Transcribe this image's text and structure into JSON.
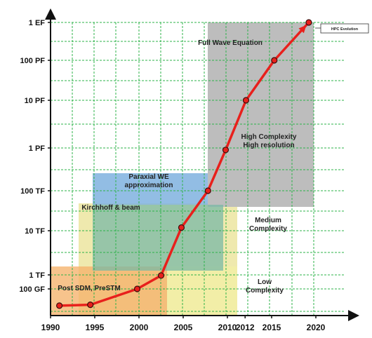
{
  "chart_data": {
    "type": "line",
    "title": "",
    "xlabel": "",
    "ylabel": "",
    "x_ticks": [
      "1990",
      "1995",
      "2000",
      "2005",
      "2010",
      "2012",
      "2015",
      "2020"
    ],
    "y_ticks": [
      "1 EF",
      "100 PF",
      "10 PF",
      "1 PF",
      "100 TF",
      "10 TF",
      "1 TF",
      "100 GF"
    ],
    "xlim": [
      1990,
      2021.5
    ],
    "grid": true,
    "legend": {
      "label": "HPC Evolution",
      "position": "top-right"
    },
    "series": [
      {
        "name": "HPC Evolution",
        "color": "#e8201c",
        "points": [
          {
            "x": 1991,
            "y": "30 GF"
          },
          {
            "x": 1994.5,
            "y": "32 GF"
          },
          {
            "x": 1999.8,
            "y": "100 GF"
          },
          {
            "x": 2002.5,
            "y": "0.9 TF"
          },
          {
            "x": 2004.8,
            "y": "12 TF"
          },
          {
            "x": 2007.8,
            "y": "100 TF"
          },
          {
            "x": 2009.8,
            "y": "0.9 PF"
          },
          {
            "x": 2012.1,
            "y": "10 PF"
          },
          {
            "x": 2015.3,
            "y": "100 PF"
          },
          {
            "x": 2019.2,
            "y": "1 EF"
          }
        ]
      }
    ],
    "regions": [
      {
        "label_lines": [
          "Full Wave Equation"
        ],
        "color": "#bdbdbd"
      },
      {
        "label_lines": [
          "High Complexity",
          "High resolution"
        ],
        "color": "#bdbdbd"
      },
      {
        "label_lines": [
          "Paraxial WE",
          "approximation"
        ],
        "color": "#7fb2df"
      },
      {
        "label_lines": [
          "Kirchhoff & beam"
        ],
        "color": "#e9e293"
      },
      {
        "label_lines": [
          "Medium",
          "Complexity"
        ],
        "color": "#ffffff"
      },
      {
        "label_lines": [
          "Post SDM, PreSTM"
        ],
        "color": "#f5b26b"
      },
      {
        "label_lines": [
          "Low",
          "Complexity"
        ],
        "color": "#f4efa4"
      }
    ]
  }
}
